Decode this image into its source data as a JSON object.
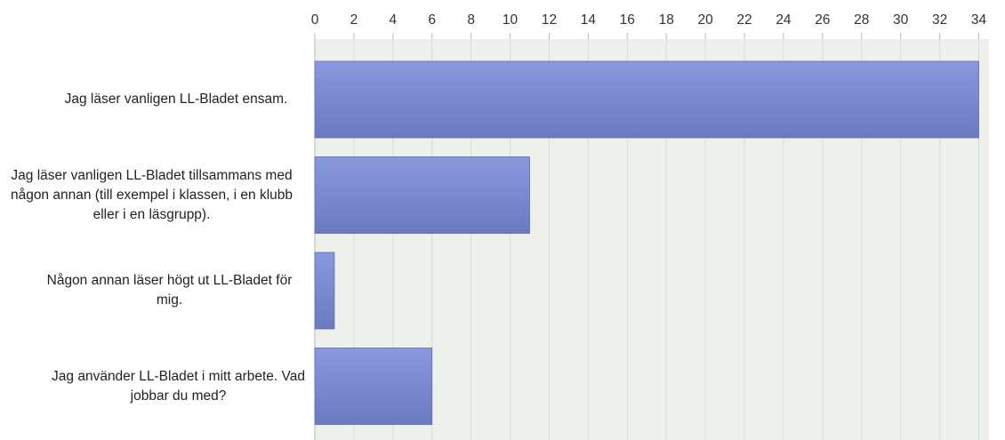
{
  "colors": {
    "bar": "#7b89d2",
    "bar_light": "#8a98de",
    "bar_dark": "#6b79c0",
    "plot_bg": "#eef0ec",
    "grid": "#d8dcd6",
    "axis": "#b8bcb6"
  },
  "chart_data": {
    "type": "bar",
    "orientation": "horizontal",
    "title": "",
    "xlabel": "",
    "ylabel": "",
    "xlim": [
      0,
      34
    ],
    "x_ticks": [
      "0",
      "2",
      "4",
      "6",
      "8",
      "10",
      "12",
      "14",
      "16",
      "18",
      "20",
      "22",
      "24",
      "26",
      "28",
      "30",
      "32",
      "34"
    ],
    "tick_position": "top",
    "grid": true,
    "legend": "none",
    "categories": [
      "Jag läser vanligen LL-Bladet ensam.",
      "Jag läser vanligen LL-Bladet tillsammans med någon annan (till exempel i klassen, i en klubb eller i en läsgrupp).",
      "Någon annan läser högt ut LL-Bladet för mig.",
      "Jag använder LL-Bladet i mitt arbete. Vad jobbar du med?"
    ],
    "values": [
      34,
      11,
      1,
      6
    ]
  }
}
